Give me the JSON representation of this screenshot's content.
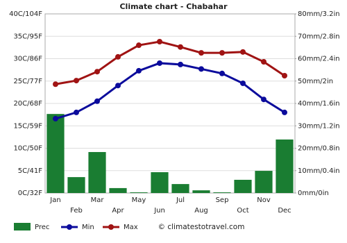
{
  "chart_data": {
    "type": "combo",
    "title": "Climate chart - Chabahar",
    "categories": [
      "Jan",
      "Feb",
      "Mar",
      "Apr",
      "May",
      "Jun",
      "Jul",
      "Aug",
      "Sep",
      "Oct",
      "Nov",
      "Dec"
    ],
    "series": [
      {
        "name": "Prec",
        "type": "bar",
        "axis": "y2",
        "color": "#1a7d32",
        "values": [
          35.3,
          7.1,
          18.3,
          2.2,
          0.3,
          9.3,
          4.0,
          1.2,
          0.3,
          5.9,
          9.9,
          23.9
        ]
      },
      {
        "name": "Min",
        "type": "line",
        "color": "#0b0b9c",
        "values": [
          16.6,
          18.0,
          20.5,
          24.0,
          27.3,
          29.0,
          28.7,
          27.7,
          26.7,
          24.5,
          20.9,
          18.0
        ]
      },
      {
        "name": "Max",
        "type": "line",
        "color": "#a01313",
        "values": [
          24.3,
          25.1,
          27.1,
          30.4,
          33.0,
          33.8,
          32.6,
          31.3,
          31.3,
          31.5,
          29.3,
          26.2
        ]
      }
    ],
    "ylim": [
      0,
      40
    ],
    "yticks": [
      {
        "value": 0,
        "label": "0C/32F"
      },
      {
        "value": 5,
        "label": "5C/41F"
      },
      {
        "value": 10,
        "label": "10C/50F"
      },
      {
        "value": 15,
        "label": "15C/59F"
      },
      {
        "value": 20,
        "label": "20C/68F"
      },
      {
        "value": 25,
        "label": "25C/77F"
      },
      {
        "value": 30,
        "label": "30C/86F"
      },
      {
        "value": 35,
        "label": "35C/95F"
      },
      {
        "value": 40,
        "label": "40C/104F"
      }
    ],
    "y2lim": [
      0,
      80
    ],
    "y2ticks": [
      {
        "value": 0,
        "label": "0mm/0in"
      },
      {
        "value": 10,
        "label": "10mm/0.4in"
      },
      {
        "value": 20,
        "label": "20mm/0.8in"
      },
      {
        "value": 30,
        "label": "30mm/1.2in"
      },
      {
        "value": 40,
        "label": "40mm/1.6in"
      },
      {
        "value": 50,
        "label": "50mm/2in"
      },
      {
        "value": 60,
        "label": "60mm/2.4in"
      },
      {
        "value": 70,
        "label": "70mm/2.8in"
      },
      {
        "value": 80,
        "label": "80mm/3.2in"
      }
    ],
    "y2tick_color": "#1a7d32",
    "grid": true,
    "credit": "© climatestotravel.com"
  }
}
